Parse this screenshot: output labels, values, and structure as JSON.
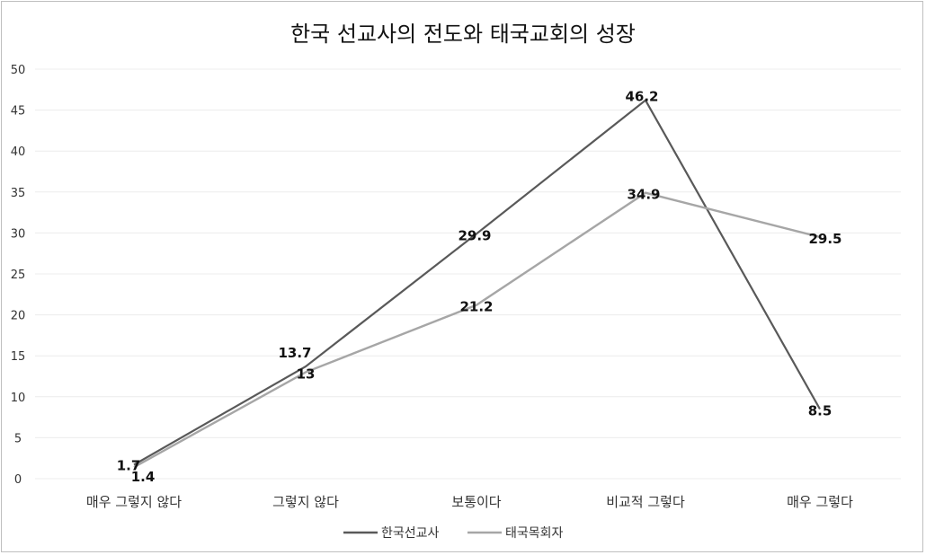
{
  "chart_data": {
    "type": "line",
    "title": "한국 선교사의 전도와 태국교회의 성장",
    "categories": [
      "매우 그렇지 않다",
      "그렇지 않다",
      "보통이다",
      "비교적 그렇다",
      "매우 그렇다"
    ],
    "ylim": [
      0,
      50
    ],
    "yticks": [
      0,
      5,
      10,
      15,
      20,
      25,
      30,
      35,
      40,
      45,
      50
    ],
    "grid": true,
    "legend_position": "bottom",
    "series": [
      {
        "name": "한국선교사",
        "values": [
          1.7,
          13.7,
          29.9,
          46.2,
          8.5
        ],
        "labels": [
          "1.7",
          "13.7",
          "29.9",
          "46.2",
          "8.5"
        ],
        "color": "#595959"
      },
      {
        "name": "태국목회자",
        "values": [
          1.4,
          13,
          21.2,
          34.9,
          29.5
        ],
        "labels": [
          "1.4",
          "13",
          "21.2",
          "34.9",
          "29.5"
        ],
        "color": "#a6a6a6"
      }
    ]
  }
}
